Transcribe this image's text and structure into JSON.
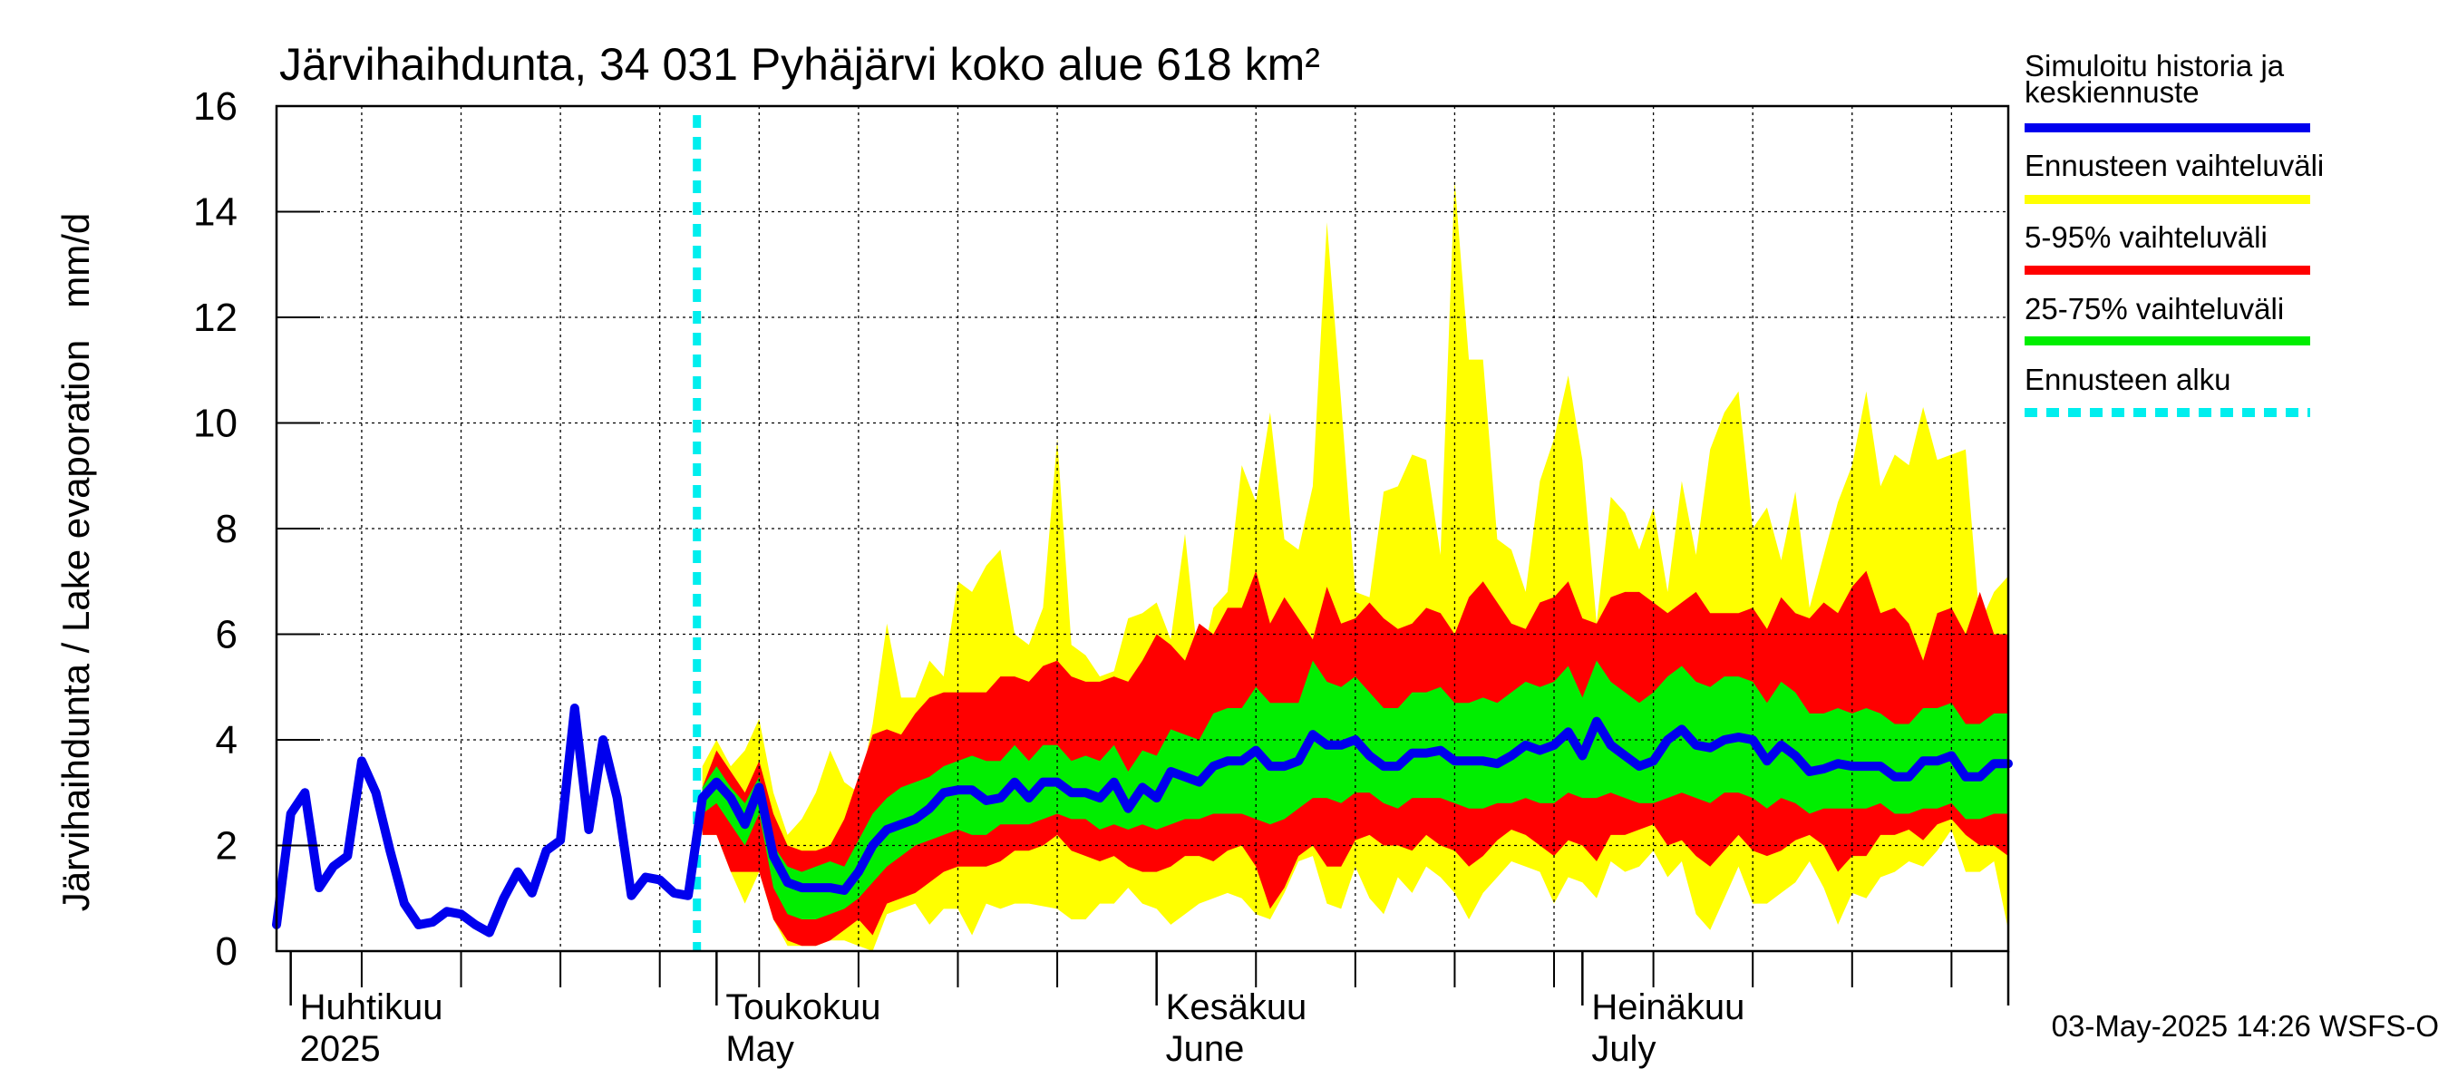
{
  "chart_data": {
    "type": "area",
    "title": "Järvihaihdunta, 34 031 Pyhäjärvi koko alue 618 km²",
    "ylabel": "Järvihaihdunta / Lake evaporation   mm/d",
    "ylim": [
      0,
      16
    ],
    "yticks": [
      0,
      2,
      4,
      6,
      8,
      10,
      12,
      14,
      16
    ],
    "xlim": [
      "2025-03-31",
      "2025-07-31"
    ],
    "grid": true,
    "legend_position": "right",
    "footer": "03-May-2025 14:26 WSFS-O",
    "months": [
      {
        "fi": "Huhtikuu",
        "en": "2025",
        "date": "2025-04-01"
      },
      {
        "fi": "Toukokuu",
        "en": "May",
        "date": "2025-05-01"
      },
      {
        "fi": "Kesäkuu",
        "en": "June",
        "date": "2025-06-01"
      },
      {
        "fi": "Heinäkuu",
        "en": "July",
        "date": "2025-07-01"
      }
    ],
    "forecast_start": "2025-04-30",
    "colors": {
      "history": "#0000ee",
      "range": "#ffff00",
      "p5_95": "#ff0000",
      "p25_75": "#00ee00",
      "forecast_start": "#00eeee"
    },
    "legend": [
      {
        "label": "Simuloitu historia ja keskiennuste",
        "key": "history"
      },
      {
        "label": "Ennusteen vaihteluväli",
        "key": "range"
      },
      {
        "label": "5-95% vaihteluväli",
        "key": "p5_95"
      },
      {
        "label": "25-75% vaihteluväli",
        "key": "p25_75"
      },
      {
        "label": "Ennusteen alku",
        "key": "forecast_start"
      }
    ],
    "history": {
      "x": [
        "2025-03-31",
        "2025-04-01",
        "2025-04-02",
        "2025-04-03",
        "2025-04-04",
        "2025-04-05",
        "2025-04-06",
        "2025-04-07",
        "2025-04-08",
        "2025-04-09",
        "2025-04-10",
        "2025-04-11",
        "2025-04-12",
        "2025-04-13",
        "2025-04-14",
        "2025-04-15",
        "2025-04-16",
        "2025-04-17",
        "2025-04-18",
        "2025-04-19",
        "2025-04-20",
        "2025-04-21",
        "2025-04-22",
        "2025-04-23",
        "2025-04-24",
        "2025-04-25",
        "2025-04-26",
        "2025-04-27",
        "2025-04-28",
        "2025-04-29",
        "2025-04-30"
      ],
      "y": [
        0.5,
        2.6,
        3.0,
        1.2,
        1.6,
        1.8,
        3.6,
        3.0,
        1.9,
        0.9,
        0.5,
        0.55,
        0.75,
        0.7,
        0.5,
        0.35,
        1.0,
        1.5,
        1.1,
        1.9,
        2.1,
        4.6,
        2.3,
        4.0,
        2.9,
        1.05,
        1.4,
        1.35,
        1.1,
        1.05,
        2.9
      ]
    },
    "forecast": {
      "x": [
        "2025-04-30",
        "2025-05-01",
        "2025-05-02",
        "2025-05-03",
        "2025-05-04",
        "2025-05-05",
        "2025-05-06",
        "2025-05-07",
        "2025-05-08",
        "2025-05-09",
        "2025-05-10",
        "2025-05-11",
        "2025-05-12",
        "2025-05-13",
        "2025-05-14",
        "2025-05-15",
        "2025-05-16",
        "2025-05-17",
        "2025-05-18",
        "2025-05-19",
        "2025-05-20",
        "2025-05-21",
        "2025-05-22",
        "2025-05-23",
        "2025-05-24",
        "2025-05-25",
        "2025-05-26",
        "2025-05-27",
        "2025-05-28",
        "2025-05-29",
        "2025-05-30",
        "2025-05-31",
        "2025-06-01",
        "2025-06-02",
        "2025-06-03",
        "2025-06-04",
        "2025-06-05",
        "2025-06-06",
        "2025-06-07",
        "2025-06-08",
        "2025-06-09",
        "2025-06-10",
        "2025-06-11",
        "2025-06-12",
        "2025-06-13",
        "2025-06-14",
        "2025-06-15",
        "2025-06-16",
        "2025-06-17",
        "2025-06-18",
        "2025-06-19",
        "2025-06-20",
        "2025-06-21",
        "2025-06-22",
        "2025-06-23",
        "2025-06-24",
        "2025-06-25",
        "2025-06-26",
        "2025-06-27",
        "2025-06-28",
        "2025-06-29",
        "2025-06-30",
        "2025-07-01",
        "2025-07-02",
        "2025-07-03",
        "2025-07-04",
        "2025-07-05",
        "2025-07-06",
        "2025-07-07",
        "2025-07-08",
        "2025-07-09",
        "2025-07-10",
        "2025-07-11",
        "2025-07-12",
        "2025-07-13",
        "2025-07-14",
        "2025-07-15",
        "2025-07-16",
        "2025-07-17",
        "2025-07-18",
        "2025-07-19",
        "2025-07-20",
        "2025-07-21",
        "2025-07-22",
        "2025-07-23",
        "2025-07-24",
        "2025-07-25",
        "2025-07-26",
        "2025-07-27",
        "2025-07-28",
        "2025-07-29",
        "2025-07-30",
        "2025-07-31"
      ],
      "median": [
        2.9,
        3.2,
        2.9,
        2.4,
        3.1,
        1.8,
        1.3,
        1.2,
        1.2,
        1.2,
        1.15,
        1.5,
        2.0,
        2.3,
        2.4,
        2.5,
        2.7,
        3.0,
        3.05,
        3.05,
        2.85,
        2.9,
        3.2,
        2.9,
        3.2,
        3.2,
        3.0,
        3.0,
        2.9,
        3.2,
        2.7,
        3.1,
        2.9,
        3.4,
        3.3,
        3.2,
        3.5,
        3.6,
        3.6,
        3.8,
        3.5,
        3.5,
        3.6,
        4.1,
        3.9,
        3.9,
        4.0,
        3.7,
        3.5,
        3.5,
        3.75,
        3.75,
        3.8,
        3.6,
        3.6,
        3.6,
        3.55,
        3.7,
        3.9,
        3.8,
        3.9,
        4.15,
        3.7,
        4.35,
        3.9,
        3.7,
        3.5,
        3.6,
        4.0,
        4.2,
        3.9,
        3.85,
        4.0,
        4.05,
        4.0,
        3.6,
        3.9,
        3.7,
        3.4,
        3.45,
        3.55,
        3.5,
        3.5,
        3.5,
        3.3,
        3.3,
        3.6,
        3.6,
        3.7,
        3.3,
        3.3,
        3.55,
        3.55
      ],
      "min": [
        2.2,
        2.2,
        1.5,
        0.9,
        1.5,
        0.6,
        0.1,
        0.1,
        0.1,
        0.2,
        0.2,
        0.1,
        0.0,
        0.7,
        0.8,
        0.9,
        0.5,
        0.8,
        0.8,
        0.3,
        0.9,
        0.8,
        0.9,
        0.9,
        0.85,
        0.8,
        0.6,
        0.6,
        0.9,
        0.9,
        1.2,
        0.9,
        0.8,
        0.5,
        0.7,
        0.9,
        1.0,
        1.1,
        1.0,
        0.7,
        0.6,
        1.1,
        1.7,
        1.8,
        0.9,
        0.8,
        1.6,
        1.0,
        0.7,
        1.4,
        1.1,
        1.6,
        1.4,
        1.1,
        0.6,
        1.1,
        1.4,
        1.7,
        1.6,
        1.5,
        0.9,
        1.4,
        1.3,
        1.0,
        1.7,
        1.5,
        1.6,
        1.9,
        1.4,
        1.7,
        0.7,
        0.4,
        1.0,
        1.6,
        0.9,
        0.9,
        1.1,
        1.3,
        1.7,
        1.2,
        0.5,
        1.1,
        1.0,
        1.4,
        1.5,
        1.7,
        1.6,
        1.9,
        2.3,
        1.5,
        1.5,
        1.7,
        0.4
      ],
      "max": [
        3.5,
        4.0,
        3.5,
        3.8,
        4.4,
        3.0,
        2.2,
        2.5,
        3.0,
        3.8,
        3.2,
        3.0,
        4.3,
        6.2,
        4.8,
        4.8,
        5.5,
        5.2,
        7.0,
        6.8,
        7.3,
        7.6,
        6.0,
        5.8,
        6.5,
        9.7,
        5.8,
        5.6,
        5.2,
        5.3,
        6.3,
        6.4,
        6.6,
        5.9,
        7.9,
        5.3,
        6.5,
        6.8,
        9.2,
        8.5,
        10.2,
        7.8,
        7.6,
        8.8,
        13.8,
        10.4,
        6.8,
        6.7,
        8.7,
        8.8,
        9.4,
        9.3,
        7.5,
        14.6,
        11.2,
        11.2,
        7.8,
        7.6,
        6.8,
        8.9,
        9.7,
        10.9,
        9.3,
        6.2,
        8.6,
        8.3,
        7.6,
        8.4,
        6.8,
        8.9,
        7.5,
        9.5,
        10.2,
        10.6,
        8.0,
        8.4,
        7.4,
        8.7,
        6.5,
        7.5,
        8.5,
        9.2,
        10.6,
        8.8,
        9.4,
        9.2,
        10.3,
        9.3,
        9.4,
        9.5,
        6.2,
        6.8,
        7.1
      ]
    },
    "p5_95_band": {
      "low": [
        2.2,
        2.2,
        1.5,
        1.5,
        1.5,
        0.6,
        0.2,
        0.1,
        0.1,
        0.2,
        0.4,
        0.6,
        0.3,
        0.9,
        1.0,
        1.1,
        1.3,
        1.5,
        1.6,
        1.6,
        1.6,
        1.7,
        1.9,
        1.9,
        2.0,
        2.2,
        1.9,
        1.8,
        1.7,
        1.8,
        1.6,
        1.5,
        1.5,
        1.6,
        1.8,
        1.8,
        1.7,
        1.9,
        2.0,
        1.6,
        0.8,
        1.2,
        1.8,
        2.0,
        1.6,
        1.6,
        2.1,
        2.2,
        2.0,
        2.0,
        1.9,
        2.2,
        2.0,
        1.9,
        1.6,
        1.8,
        2.1,
        2.3,
        2.2,
        2.0,
        1.8,
        2.1,
        2.0,
        1.7,
        2.2,
        2.2,
        2.3,
        2.4,
        2.0,
        2.1,
        1.8,
        1.6,
        1.9,
        2.2,
        1.9,
        1.8,
        1.9,
        2.1,
        2.2,
        2.0,
        1.5,
        1.8,
        1.8,
        2.2,
        2.2,
        2.3,
        2.1,
        2.4,
        2.5,
        2.2,
        2.0,
        2.0,
        1.8
      ],
      "high": [
        3.1,
        3.8,
        3.4,
        3.0,
        3.6,
        2.6,
        2.0,
        1.9,
        1.9,
        2.0,
        2.5,
        3.3,
        4.1,
        4.2,
        4.1,
        4.5,
        4.8,
        4.9,
        4.9,
        4.9,
        4.9,
        5.2,
        5.2,
        5.1,
        5.4,
        5.5,
        5.2,
        5.1,
        5.1,
        5.2,
        5.1,
        5.5,
        6.0,
        5.8,
        5.5,
        6.2,
        6.0,
        6.5,
        6.5,
        7.2,
        6.2,
        6.7,
        6.3,
        5.9,
        6.9,
        6.2,
        6.3,
        6.6,
        6.3,
        6.1,
        6.2,
        6.5,
        6.4,
        6.0,
        6.7,
        7.0,
        6.6,
        6.2,
        6.1,
        6.6,
        6.7,
        7.0,
        6.3,
        6.2,
        6.7,
        6.8,
        6.8,
        6.6,
        6.4,
        6.6,
        6.8,
        6.4,
        6.4,
        6.4,
        6.5,
        6.1,
        6.7,
        6.4,
        6.3,
        6.6,
        6.4,
        6.9,
        7.2,
        6.4,
        6.5,
        6.2,
        5.5,
        6.4,
        6.5,
        6.0,
        6.8,
        6.0,
        6.0
      ]
    },
    "p25_75_band": {
      "low": [
        2.6,
        2.8,
        2.4,
        2.0,
        2.6,
        1.2,
        0.7,
        0.6,
        0.6,
        0.7,
        0.8,
        1.0,
        1.3,
        1.6,
        1.8,
        2.0,
        2.1,
        2.2,
        2.3,
        2.2,
        2.2,
        2.4,
        2.4,
        2.4,
        2.5,
        2.6,
        2.5,
        2.5,
        2.3,
        2.4,
        2.3,
        2.4,
        2.3,
        2.4,
        2.5,
        2.5,
        2.6,
        2.6,
        2.6,
        2.5,
        2.4,
        2.5,
        2.7,
        2.9,
        2.9,
        2.8,
        3.0,
        3.0,
        2.8,
        2.7,
        2.9,
        2.9,
        2.9,
        2.8,
        2.7,
        2.7,
        2.8,
        2.8,
        2.9,
        2.8,
        2.8,
        3.0,
        2.9,
        2.9,
        3.0,
        2.9,
        2.8,
        2.8,
        2.9,
        3.0,
        2.9,
        2.8,
        3.0,
        3.0,
        2.9,
        2.7,
        2.9,
        2.8,
        2.6,
        2.7,
        2.7,
        2.7,
        2.7,
        2.8,
        2.6,
        2.6,
        2.7,
        2.7,
        2.8,
        2.5,
        2.5,
        2.6,
        2.6
      ],
      "high": [
        3.1,
        3.5,
        3.1,
        2.8,
        3.3,
        2.0,
        1.6,
        1.5,
        1.6,
        1.7,
        1.6,
        2.1,
        2.6,
        2.9,
        3.1,
        3.2,
        3.3,
        3.5,
        3.6,
        3.7,
        3.6,
        3.6,
        3.9,
        3.6,
        3.9,
        3.9,
        3.6,
        3.7,
        3.6,
        3.9,
        3.4,
        3.8,
        3.7,
        4.2,
        4.1,
        4.0,
        4.5,
        4.6,
        4.6,
        5.0,
        4.7,
        4.7,
        4.7,
        5.5,
        5.1,
        5.0,
        5.2,
        4.9,
        4.6,
        4.6,
        4.9,
        4.9,
        5.0,
        4.7,
        4.7,
        4.8,
        4.7,
        4.9,
        5.1,
        5.0,
        5.1,
        5.4,
        4.8,
        5.5,
        5.1,
        4.9,
        4.7,
        4.9,
        5.2,
        5.4,
        5.1,
        5.0,
        5.2,
        5.2,
        5.1,
        4.7,
        5.1,
        4.9,
        4.5,
        4.5,
        4.6,
        4.5,
        4.6,
        4.5,
        4.3,
        4.3,
        4.6,
        4.6,
        4.7,
        4.3,
        4.3,
        4.5,
        4.5
      ]
    }
  }
}
